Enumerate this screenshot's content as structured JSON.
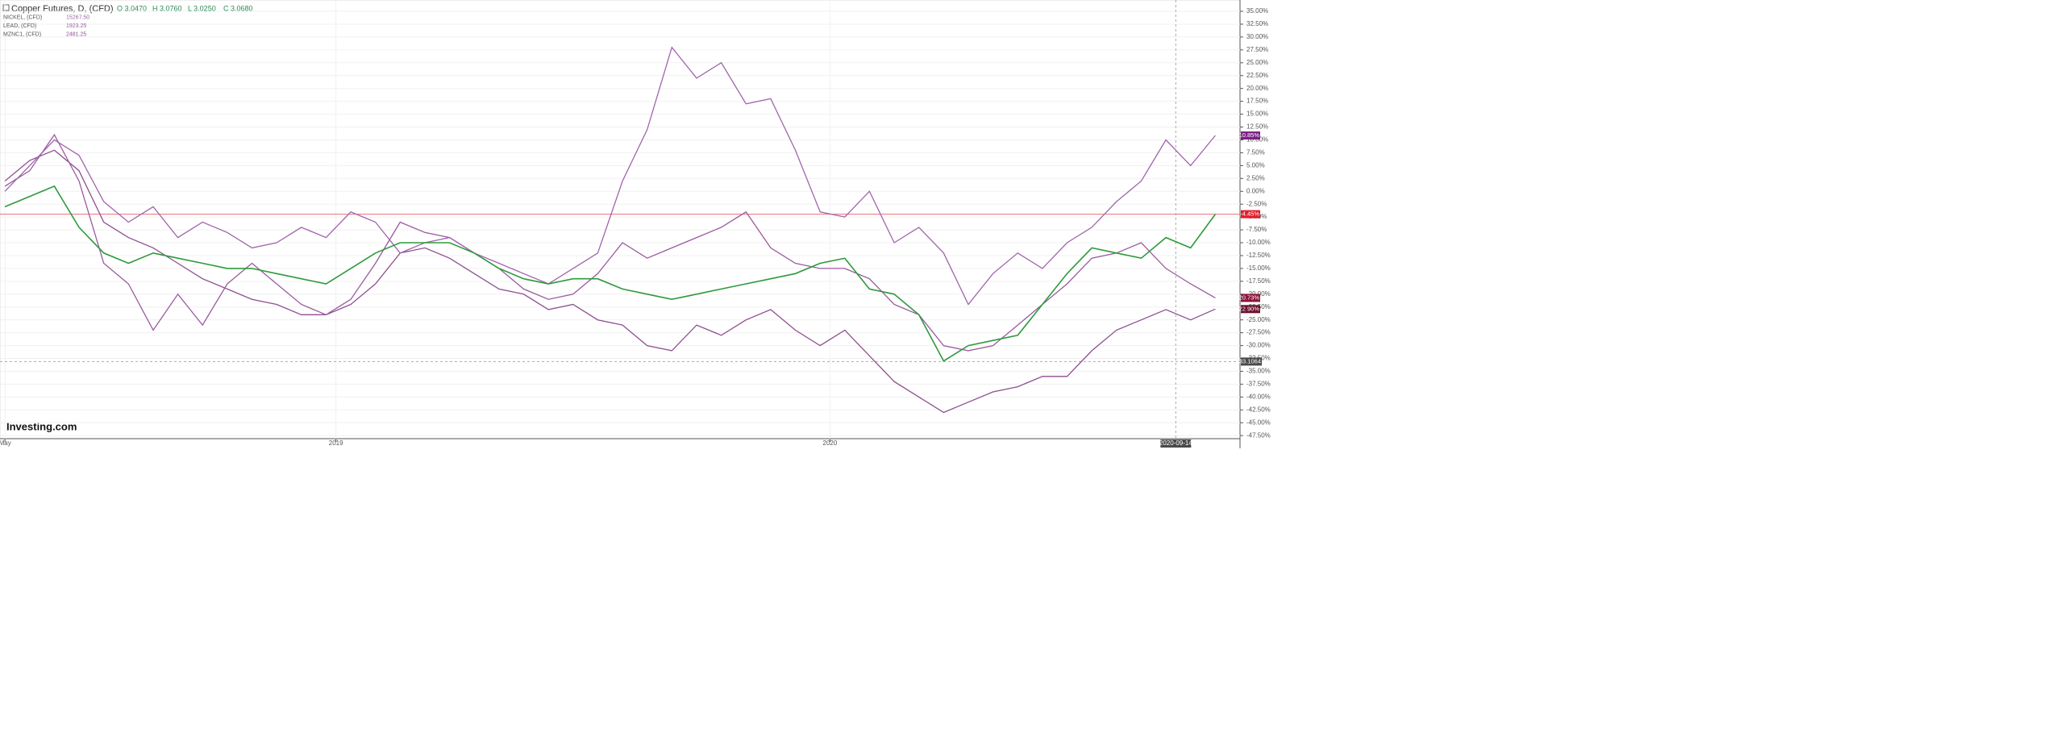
{
  "chart_data": {
    "type": "line",
    "title": "Copper Futures, D, (CFD)",
    "ohlc": [
      {
        "value": 3.047,
        "label": "O 3.0470"
      },
      {
        "value": 3.076,
        "label": "H 3.0760"
      },
      {
        "value": 3.025,
        "label": "L 3.0250"
      },
      {
        "value": 3.068,
        "label": "C 3.0680"
      }
    ],
    "logo": "Investing.com",
    "x": [
      2018.33,
      2018.38,
      2018.43,
      2018.48,
      2018.53,
      2018.58,
      2018.63,
      2018.68,
      2018.73,
      2018.78,
      2018.83,
      2018.88,
      2018.93,
      2018.98,
      2019.03,
      2019.08,
      2019.13,
      2019.18,
      2019.23,
      2019.28,
      2019.33,
      2019.38,
      2019.43,
      2019.48,
      2019.53,
      2019.58,
      2019.63,
      2019.68,
      2019.73,
      2019.78,
      2019.83,
      2019.88,
      2019.93,
      2019.98,
      2020.03,
      2020.08,
      2020.13,
      2020.18,
      2020.23,
      2020.28,
      2020.33,
      2020.38,
      2020.43,
      2020.48,
      2020.53,
      2020.58,
      2020.63,
      2020.68,
      2020.73,
      2020.78
    ],
    "series": [
      {
        "name": "Copper Futures",
        "color": "#2e9a3c",
        "values": [
          -3,
          -1,
          1,
          -7,
          -12,
          -14,
          -12,
          -13,
          -14,
          -15,
          -15,
          -16,
          -17,
          -18,
          -15,
          -12,
          -10,
          -10,
          -10,
          -12,
          -15,
          -17,
          -18,
          -17,
          -17,
          -19,
          -20,
          -21,
          -20,
          -19,
          -18,
          -17,
          -16,
          -14,
          -13,
          -19,
          -20,
          -24,
          -33,
          -30,
          -29,
          -28,
          -22,
          -16,
          -11,
          -12,
          -13,
          -9,
          -11,
          -4.45
        ]
      },
      {
        "name": "NICKEL, (CFD)",
        "color": "#a064ac",
        "last": {
          "value": 15267.5,
          "label": "15267.50"
        },
        "values": [
          0,
          5,
          10,
          7,
          -2,
          -6,
          -3,
          -9,
          -6,
          -8,
          -11,
          -10,
          -7,
          -9,
          -4,
          -6,
          -12,
          -10,
          -9,
          -12,
          -14,
          -16,
          -18,
          -15,
          -12,
          2,
          12,
          28,
          22,
          25,
          17,
          18,
          8,
          -4,
          -5,
          0,
          -10,
          -7,
          -12,
          -22,
          -16,
          -12,
          -15,
          -10,
          -7,
          -2,
          2,
          10,
          5,
          10.85
        ]
      },
      {
        "name": "LEAD, (CFD)",
        "color": "#9a5a9e",
        "last": {
          "value": 1923.25,
          "label": "1923.25"
        },
        "values": [
          1,
          4,
          11,
          2,
          -14,
          -18,
          -27,
          -20,
          -26,
          -18,
          -14,
          -18,
          -22,
          -24,
          -21,
          -14,
          -6,
          -8,
          -9,
          -12,
          -15,
          -19,
          -21,
          -20,
          -16,
          -10,
          -13,
          -11,
          -9,
          -7,
          -4,
          -11,
          -14,
          -15,
          -15,
          -17,
          -22,
          -24,
          -30,
          -31,
          -30,
          -26,
          -22,
          -18,
          -13,
          -12,
          -10,
          -15,
          -18,
          -20.73
        ]
      },
      {
        "name": "MZNC1, (CFD)",
        "color": "#8e4f90",
        "last": {
          "value": 2481.25,
          "label": "2481.25"
        },
        "values": [
          2,
          6,
          8,
          4,
          -6,
          -9,
          -11,
          -14,
          -17,
          -19,
          -21,
          -22,
          -24,
          -24,
          -22,
          -18,
          -12,
          -11,
          -13,
          -16,
          -19,
          -20,
          -23,
          -22,
          -25,
          -26,
          -30,
          -31,
          -26,
          -28,
          -25,
          -23,
          -27,
          -30,
          -27,
          -32,
          -37,
          -40,
          -43,
          -41,
          -39,
          -38,
          -36,
          -36,
          -31,
          -27,
          -25,
          -23,
          -25,
          -22.9
        ]
      }
    ],
    "xlim": [
      2018.32,
      2020.83
    ],
    "xticks": [
      {
        "value": 2018.33,
        "label": "May"
      },
      {
        "value": 2019,
        "label": "2019"
      },
      {
        "value": 2020,
        "label": "2020"
      }
    ],
    "crosshair_x": {
      "value": 2020.7,
      "label": "2020-09-14"
    },
    "crosshair_y": {
      "value": -33.1064,
      "label": "-33.1064"
    },
    "ylim": [
      -48.1,
      37.2
    ],
    "yticks": [
      {
        "value": 35,
        "label": "35.00%"
      },
      {
        "value": 32.5,
        "label": "32.50%"
      },
      {
        "value": 30,
        "label": "30.00%"
      },
      {
        "value": 27.5,
        "label": "27.50%"
      },
      {
        "value": 25,
        "label": "25.00%"
      },
      {
        "value": 22.5,
        "label": "22.50%"
      },
      {
        "value": 20,
        "label": "20.00%"
      },
      {
        "value": 17.5,
        "label": "17.50%"
      },
      {
        "value": 15,
        "label": "15.00%"
      },
      {
        "value": 12.5,
        "label": "12.50%"
      },
      {
        "value": 10,
        "label": "10.00%"
      },
      {
        "value": 7.5,
        "label": "7.50%"
      },
      {
        "value": 5,
        "label": "5.00%"
      },
      {
        "value": 2.5,
        "label": "2.50%"
      },
      {
        "value": 0,
        "label": "0.00%"
      },
      {
        "value": -2.5,
        "label": "-2.50%"
      },
      {
        "value": -5,
        "label": "-5.00%"
      },
      {
        "value": -7.5,
        "label": "-7.50%"
      },
      {
        "value": -10,
        "label": "-10.00%"
      },
      {
        "value": -12.5,
        "label": "-12.50%"
      },
      {
        "value": -15,
        "label": "-15.00%"
      },
      {
        "value": -17.5,
        "label": "-17.50%"
      },
      {
        "value": -20,
        "label": "-20.00%"
      },
      {
        "value": -22.5,
        "label": "-22.50%"
      },
      {
        "value": -25,
        "label": "-25.00%"
      },
      {
        "value": -27.5,
        "label": "-27.50%"
      },
      {
        "value": -30,
        "label": "-30.00%"
      },
      {
        "value": -32.5,
        "label": "-32.50%"
      },
      {
        "value": -35,
        "label": "-35.00%"
      },
      {
        "value": -37.5,
        "label": "-37.50%"
      },
      {
        "value": -40,
        "label": "-40.00%"
      },
      {
        "value": -42.5,
        "label": "-42.50%"
      },
      {
        "value": -45,
        "label": "-45.00%"
      },
      {
        "value": -47.5,
        "label": "-47.50%"
      }
    ],
    "grid": true,
    "price_labels": [
      {
        "value": 10.85,
        "label": "10.85%",
        "color": "#7b1f86"
      },
      {
        "value": -4.45,
        "label": "-4.45%",
        "color": "#e0202c"
      },
      {
        "value": -20.73,
        "label": "-20.73%",
        "color": "#8a1538"
      },
      {
        "value": -22.9,
        "label": "-22.90%",
        "color": "#6b0f2a"
      }
    ],
    "last_line": {
      "value": -4.45,
      "color": "#e8707a"
    }
  }
}
